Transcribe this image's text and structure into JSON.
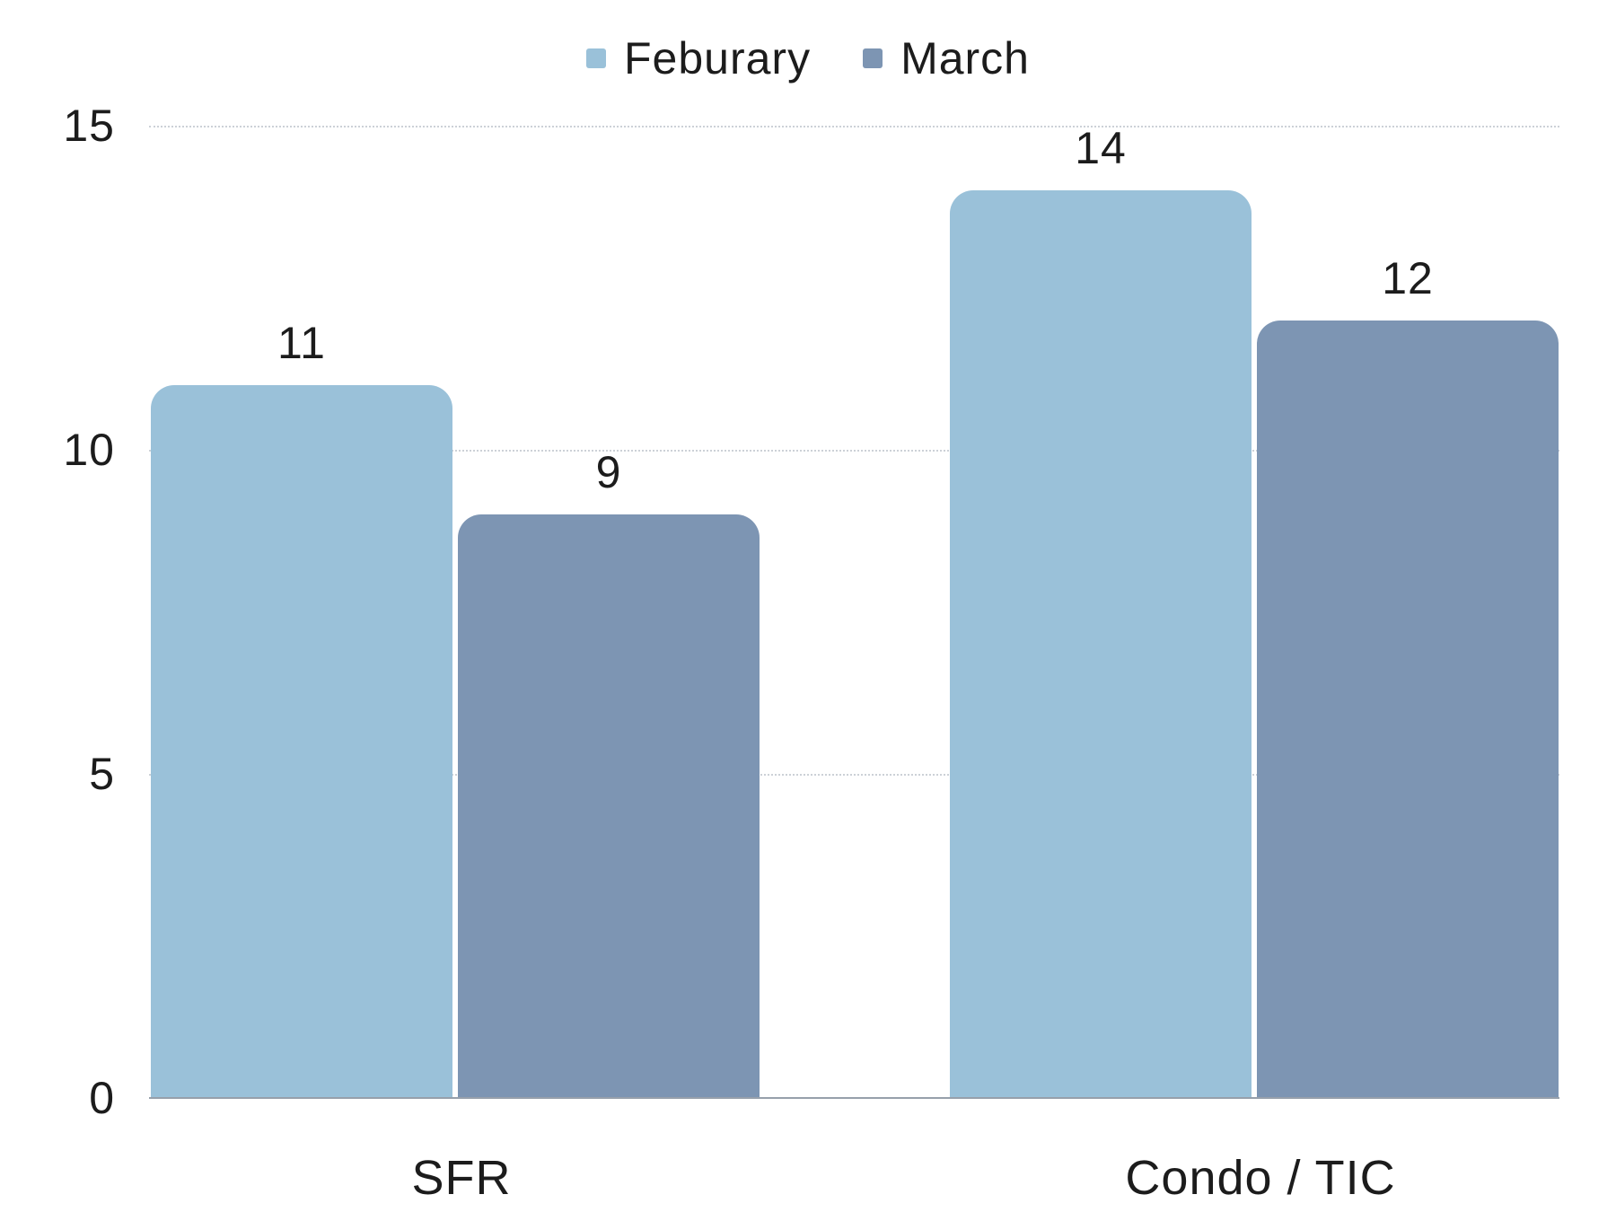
{
  "chart_data": {
    "type": "bar",
    "title": "",
    "categories": [
      "SFR",
      "Condo / TIC"
    ],
    "series": [
      {
        "name": "Feburary",
        "color": "#9ac1d9",
        "values": [
          11,
          14
        ]
      },
      {
        "name": "March",
        "color": "#7d95b3",
        "values": [
          9,
          12
        ]
      }
    ],
    "ylim": [
      0,
      15
    ],
    "yticks": [
      0,
      5,
      10,
      15
    ],
    "grid": true,
    "legend_position": "top",
    "value_labels": true
  },
  "colors": {
    "text": "#1c1c1c",
    "gridline": "#ccd1d7",
    "axis_line": "#97a0ab",
    "background": "#ffffff"
  }
}
